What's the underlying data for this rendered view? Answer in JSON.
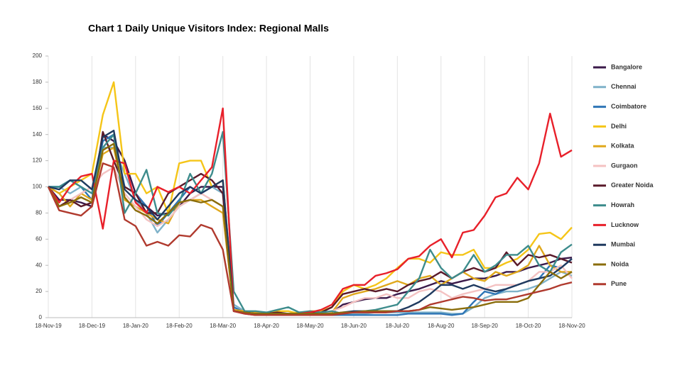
{
  "chart_data": {
    "type": "line",
    "title": "Chart 1 Daily Unique Visitors  Index: Regional Malls",
    "categories": [
      "18-Nov-19",
      null,
      null,
      null,
      "18-Dec-19",
      null,
      null,
      null,
      "18-Jan-20",
      null,
      null,
      null,
      "18-Feb-20",
      null,
      null,
      null,
      "18-Mar-20",
      null,
      null,
      null,
      "18-Apr-20",
      null,
      null,
      null,
      "18-May-20",
      null,
      null,
      null,
      "18-Jun-20",
      null,
      null,
      null,
      "18-Jul-20",
      null,
      null,
      null,
      "18-Aug-20",
      null,
      null,
      null,
      "18-Sep-20",
      null,
      null,
      null,
      "18-Oct-20",
      null,
      null,
      null,
      "18-Nov-20"
    ],
    "ylim": [
      0,
      200
    ],
    "yticks": [
      0,
      20,
      40,
      60,
      80,
      100,
      120,
      140,
      160,
      180,
      200
    ],
    "grid": "x",
    "legend": "right",
    "series": [
      {
        "name": "Bangalore",
        "color": "#3b1a4a",
        "values": [
          100,
          90,
          90,
          88,
          85,
          140,
          135,
          120,
          95,
          85,
          78,
          80,
          85,
          95,
          100,
          100,
          100,
          5,
          4,
          4,
          3,
          3,
          3,
          4,
          4,
          4,
          4,
          10,
          12,
          14,
          15,
          15,
          18,
          20,
          22,
          25,
          28,
          26,
          28,
          30,
          30,
          32,
          35,
          35,
          38,
          40,
          42,
          45,
          46
        ]
      },
      {
        "name": "Chennai",
        "color": "#7fb2c9",
        "values": [
          100,
          100,
          95,
          100,
          95,
          130,
          130,
          110,
          90,
          80,
          65,
          75,
          85,
          90,
          95,
          100,
          95,
          10,
          5,
          4,
          3,
          3,
          3,
          3,
          3,
          3,
          3,
          3,
          3,
          3,
          4,
          4,
          4,
          4,
          4,
          4,
          4,
          3,
          3,
          8,
          15,
          18,
          20,
          20,
          22,
          25,
          30,
          35,
          32
        ]
      },
      {
        "name": "Coimbatore",
        "color": "#2e75b6",
        "values": [
          100,
          100,
          105,
          100,
          90,
          135,
          140,
          100,
          95,
          85,
          70,
          80,
          90,
          100,
          95,
          100,
          105,
          8,
          4,
          3,
          2,
          2,
          2,
          2,
          2,
          2,
          2,
          2,
          2,
          2,
          2,
          2,
          2,
          3,
          3,
          3,
          3,
          2,
          3,
          12,
          20,
          18,
          22,
          25,
          28,
          30,
          40,
          38,
          45
        ]
      },
      {
        "name": "Delhi",
        "color": "#f5c518",
        "values": [
          100,
          95,
          100,
          105,
          110,
          155,
          180,
          110,
          110,
          95,
          100,
          80,
          118,
          120,
          120,
          100,
          105,
          5,
          4,
          4,
          3,
          5,
          5,
          3,
          5,
          5,
          8,
          20,
          25,
          22,
          25,
          30,
          38,
          45,
          45,
          42,
          50,
          48,
          48,
          52,
          38,
          38,
          42,
          45,
          52,
          64,
          65,
          60,
          69
        ]
      },
      {
        "name": "Kolkata",
        "color": "#e0a81c",
        "values": [
          100,
          95,
          85,
          95,
          90,
          125,
          130,
          90,
          85,
          80,
          75,
          72,
          88,
          90,
          90,
          85,
          80,
          6,
          5,
          4,
          3,
          3,
          3,
          3,
          3,
          3,
          4,
          15,
          18,
          20,
          22,
          25,
          28,
          25,
          30,
          32,
          25,
          30,
          35,
          30,
          28,
          35,
          32,
          35,
          40,
          55,
          40,
          35,
          35
        ]
      },
      {
        "name": "Gurgaon",
        "color": "#f4c2c2",
        "values": [
          100,
          85,
          90,
          95,
          100,
          110,
          115,
          95,
          85,
          75,
          70,
          75,
          85,
          90,
          95,
          90,
          85,
          5,
          4,
          3,
          3,
          3,
          3,
          3,
          3,
          3,
          5,
          8,
          12,
          15,
          15,
          18,
          15,
          15,
          20,
          22,
          20,
          15,
          18,
          20,
          22,
          25,
          25,
          25,
          28,
          35,
          35,
          40,
          30
        ]
      },
      {
        "name": "Greater Noida",
        "color": "#5a1a2a",
        "values": [
          100,
          85,
          90,
          85,
          88,
          142,
          120,
          100,
          95,
          80,
          80,
          95,
          100,
          105,
          110,
          105,
          95,
          5,
          4,
          3,
          3,
          4,
          3,
          3,
          3,
          4,
          8,
          18,
          20,
          22,
          20,
          22,
          20,
          25,
          28,
          30,
          35,
          30,
          35,
          38,
          35,
          38,
          50,
          40,
          48,
          46,
          48,
          45,
          42
        ]
      },
      {
        "name": "Howrah",
        "color": "#3d8c8c",
        "values": [
          100,
          100,
          105,
          100,
          95,
          130,
          140,
          80,
          95,
          113,
          80,
          78,
          88,
          110,
          95,
          110,
          142,
          20,
          5,
          5,
          4,
          6,
          8,
          4,
          5,
          4,
          5,
          3,
          4,
          5,
          6,
          8,
          10,
          20,
          30,
          52,
          38,
          30,
          35,
          48,
          35,
          40,
          48,
          48,
          55,
          40,
          35,
          50,
          56
        ]
      },
      {
        "name": "Lucknow",
        "color": "#e8202a",
        "values": [
          100,
          88,
          100,
          108,
          110,
          68,
          120,
          118,
          88,
          80,
          100,
          96,
          100,
          95,
          105,
          115,
          160,
          5,
          3,
          2,
          2,
          2,
          2,
          3,
          4,
          6,
          10,
          22,
          25,
          25,
          32,
          34,
          37,
          45,
          47,
          55,
          60,
          46,
          65,
          67,
          78,
          92,
          95,
          107,
          98,
          118,
          156,
          123,
          128
        ]
      },
      {
        "name": "Mumbai",
        "color": "#1f3a5f",
        "values": [
          100,
          98,
          105,
          105,
          98,
          138,
          143,
          98,
          90,
          85,
          75,
          85,
          95,
          100,
          95,
          100,
          105,
          5,
          4,
          3,
          3,
          3,
          3,
          3,
          3,
          3,
          3,
          4,
          5,
          5,
          5,
          5,
          5,
          8,
          12,
          18,
          25,
          25,
          22,
          25,
          22,
          20,
          22,
          25,
          28,
          30,
          32,
          38,
          45
        ]
      },
      {
        "name": "Noida",
        "color": "#8a6d0b",
        "values": [
          100,
          85,
          88,
          92,
          88,
          128,
          133,
          92,
          82,
          78,
          72,
          80,
          88,
          90,
          88,
          90,
          85,
          5,
          4,
          3,
          3,
          3,
          3,
          3,
          3,
          3,
          3,
          4,
          4,
          5,
          5,
          5,
          5,
          5,
          6,
          8,
          7,
          6,
          7,
          8,
          10,
          12,
          12,
          12,
          15,
          25,
          35,
          30,
          35
        ]
      },
      {
        "name": "Pune",
        "color": "#b03a2e",
        "values": [
          100,
          82,
          80,
          78,
          85,
          118,
          115,
          75,
          70,
          55,
          58,
          55,
          63,
          62,
          71,
          68,
          52,
          5,
          3,
          2,
          2,
          2,
          2,
          2,
          2,
          2,
          2,
          3,
          4,
          4,
          4,
          4,
          5,
          5,
          6,
          10,
          12,
          14,
          16,
          15,
          13,
          14,
          14,
          16,
          18,
          20,
          22,
          25,
          27
        ]
      }
    ]
  }
}
